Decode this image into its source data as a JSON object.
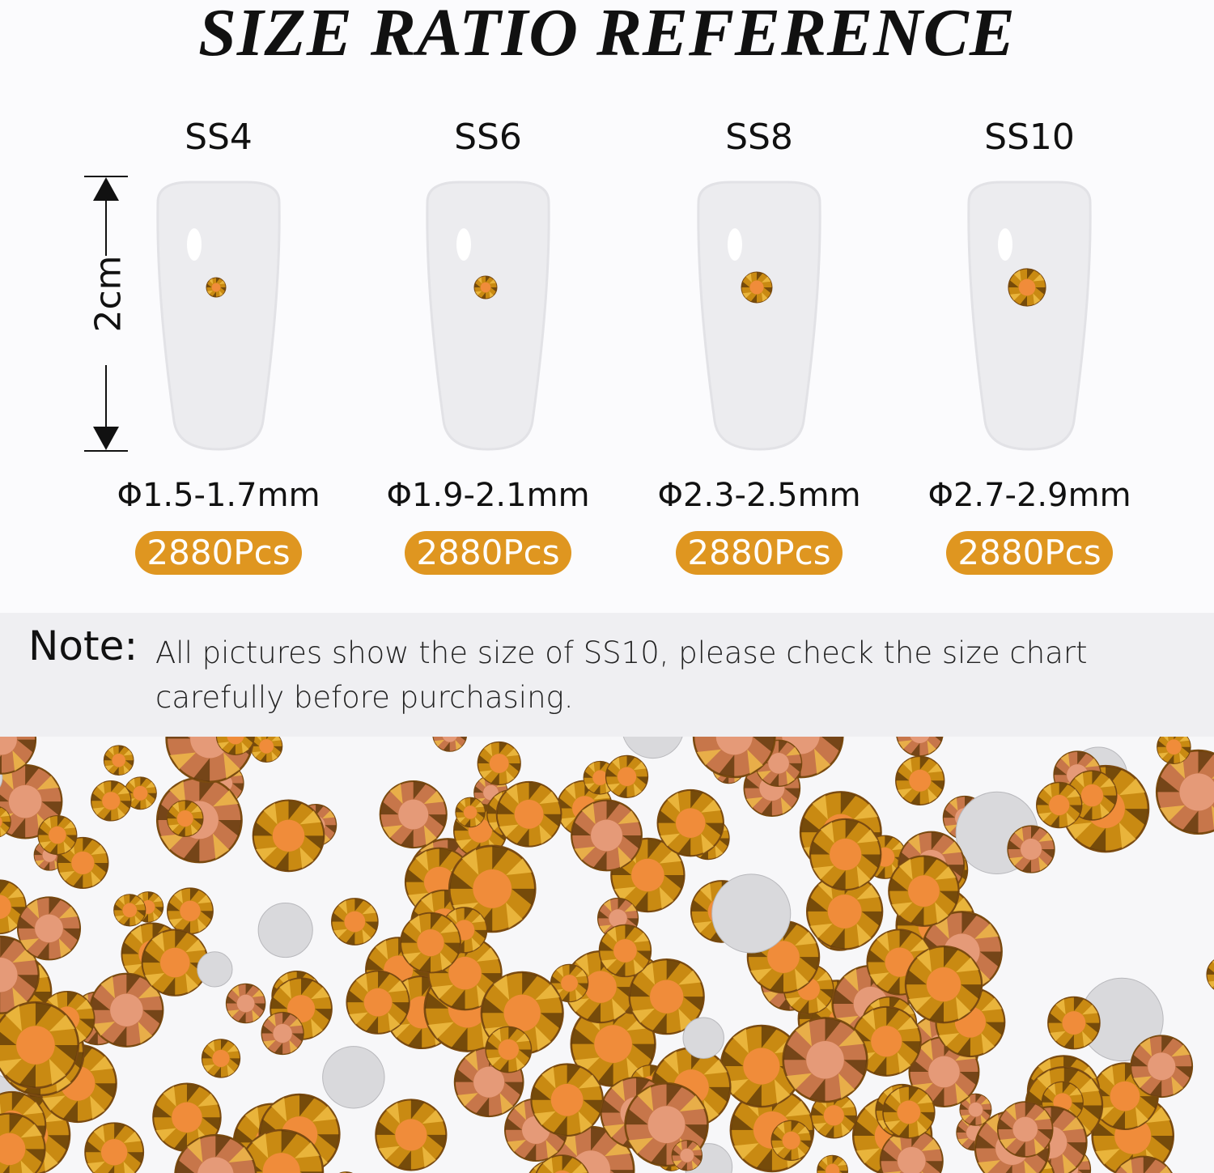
{
  "title": "SIZE RATIO REFERENCE",
  "ruler_label": "2cm",
  "sizes": [
    {
      "label": "SS4",
      "diameter": "Φ1.5-1.7mm",
      "count": "2880Pcs"
    },
    {
      "label": "SS6",
      "diameter": "Φ1.9-2.1mm",
      "count": "2880Pcs"
    },
    {
      "label": "SS8",
      "diameter": "Φ2.3-2.5mm",
      "count": "2880Pcs"
    },
    {
      "label": "SS10",
      "diameter": "Φ2.7-2.9mm",
      "count": "2880Pcs"
    }
  ],
  "note": {
    "label": "Note:",
    "text": "All pictures show the size of SS10, please check the size chart carefully before purchasing."
  },
  "colors": {
    "accent": "#df9620",
    "gem_gold": "#c98a12",
    "gem_copper": "#c7764a",
    "note_bg": "#efeff2"
  }
}
